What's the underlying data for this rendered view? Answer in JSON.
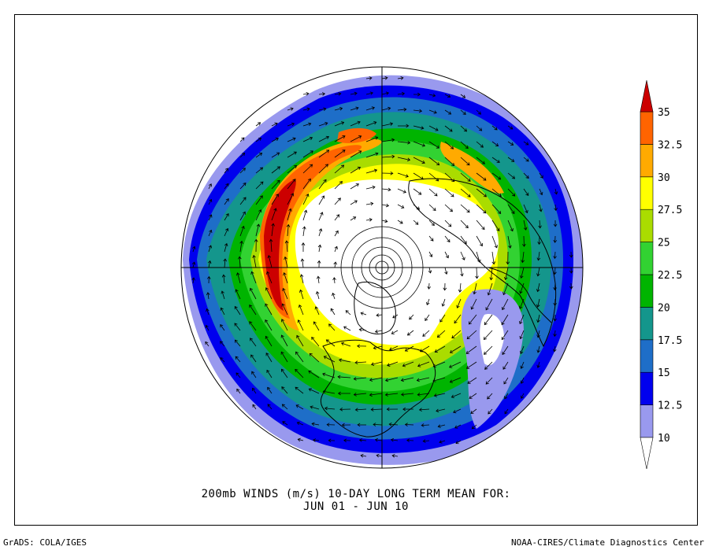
{
  "title": {
    "line1": "200mb WINDS (m/s)   10-DAY LONG TERM MEAN FOR:",
    "line2": "JUN 01 - JUN 10"
  },
  "footer": {
    "left": "GrADS: COLA/IGES",
    "right": "NOAA-CIRES/Climate Diagnostics Center"
  },
  "colorbar": {
    "labels": [
      "10",
      "12.5",
      "15",
      "17.5",
      "20",
      "22.5",
      "25",
      "27.5",
      "30",
      "32.5",
      "35"
    ],
    "colors": [
      "#ffffff",
      "#9999ee",
      "#0000ee",
      "#1e6ec8",
      "#14968c",
      "#00b400",
      "#32d232",
      "#aadc00",
      "#ffff00",
      "#ffaa00",
      "#ff6400",
      "#cc0000"
    ]
  },
  "map": {
    "projection": "north-polar-stereographic",
    "field": "200mb wind speed with wind vectors",
    "region_labels": []
  }
}
